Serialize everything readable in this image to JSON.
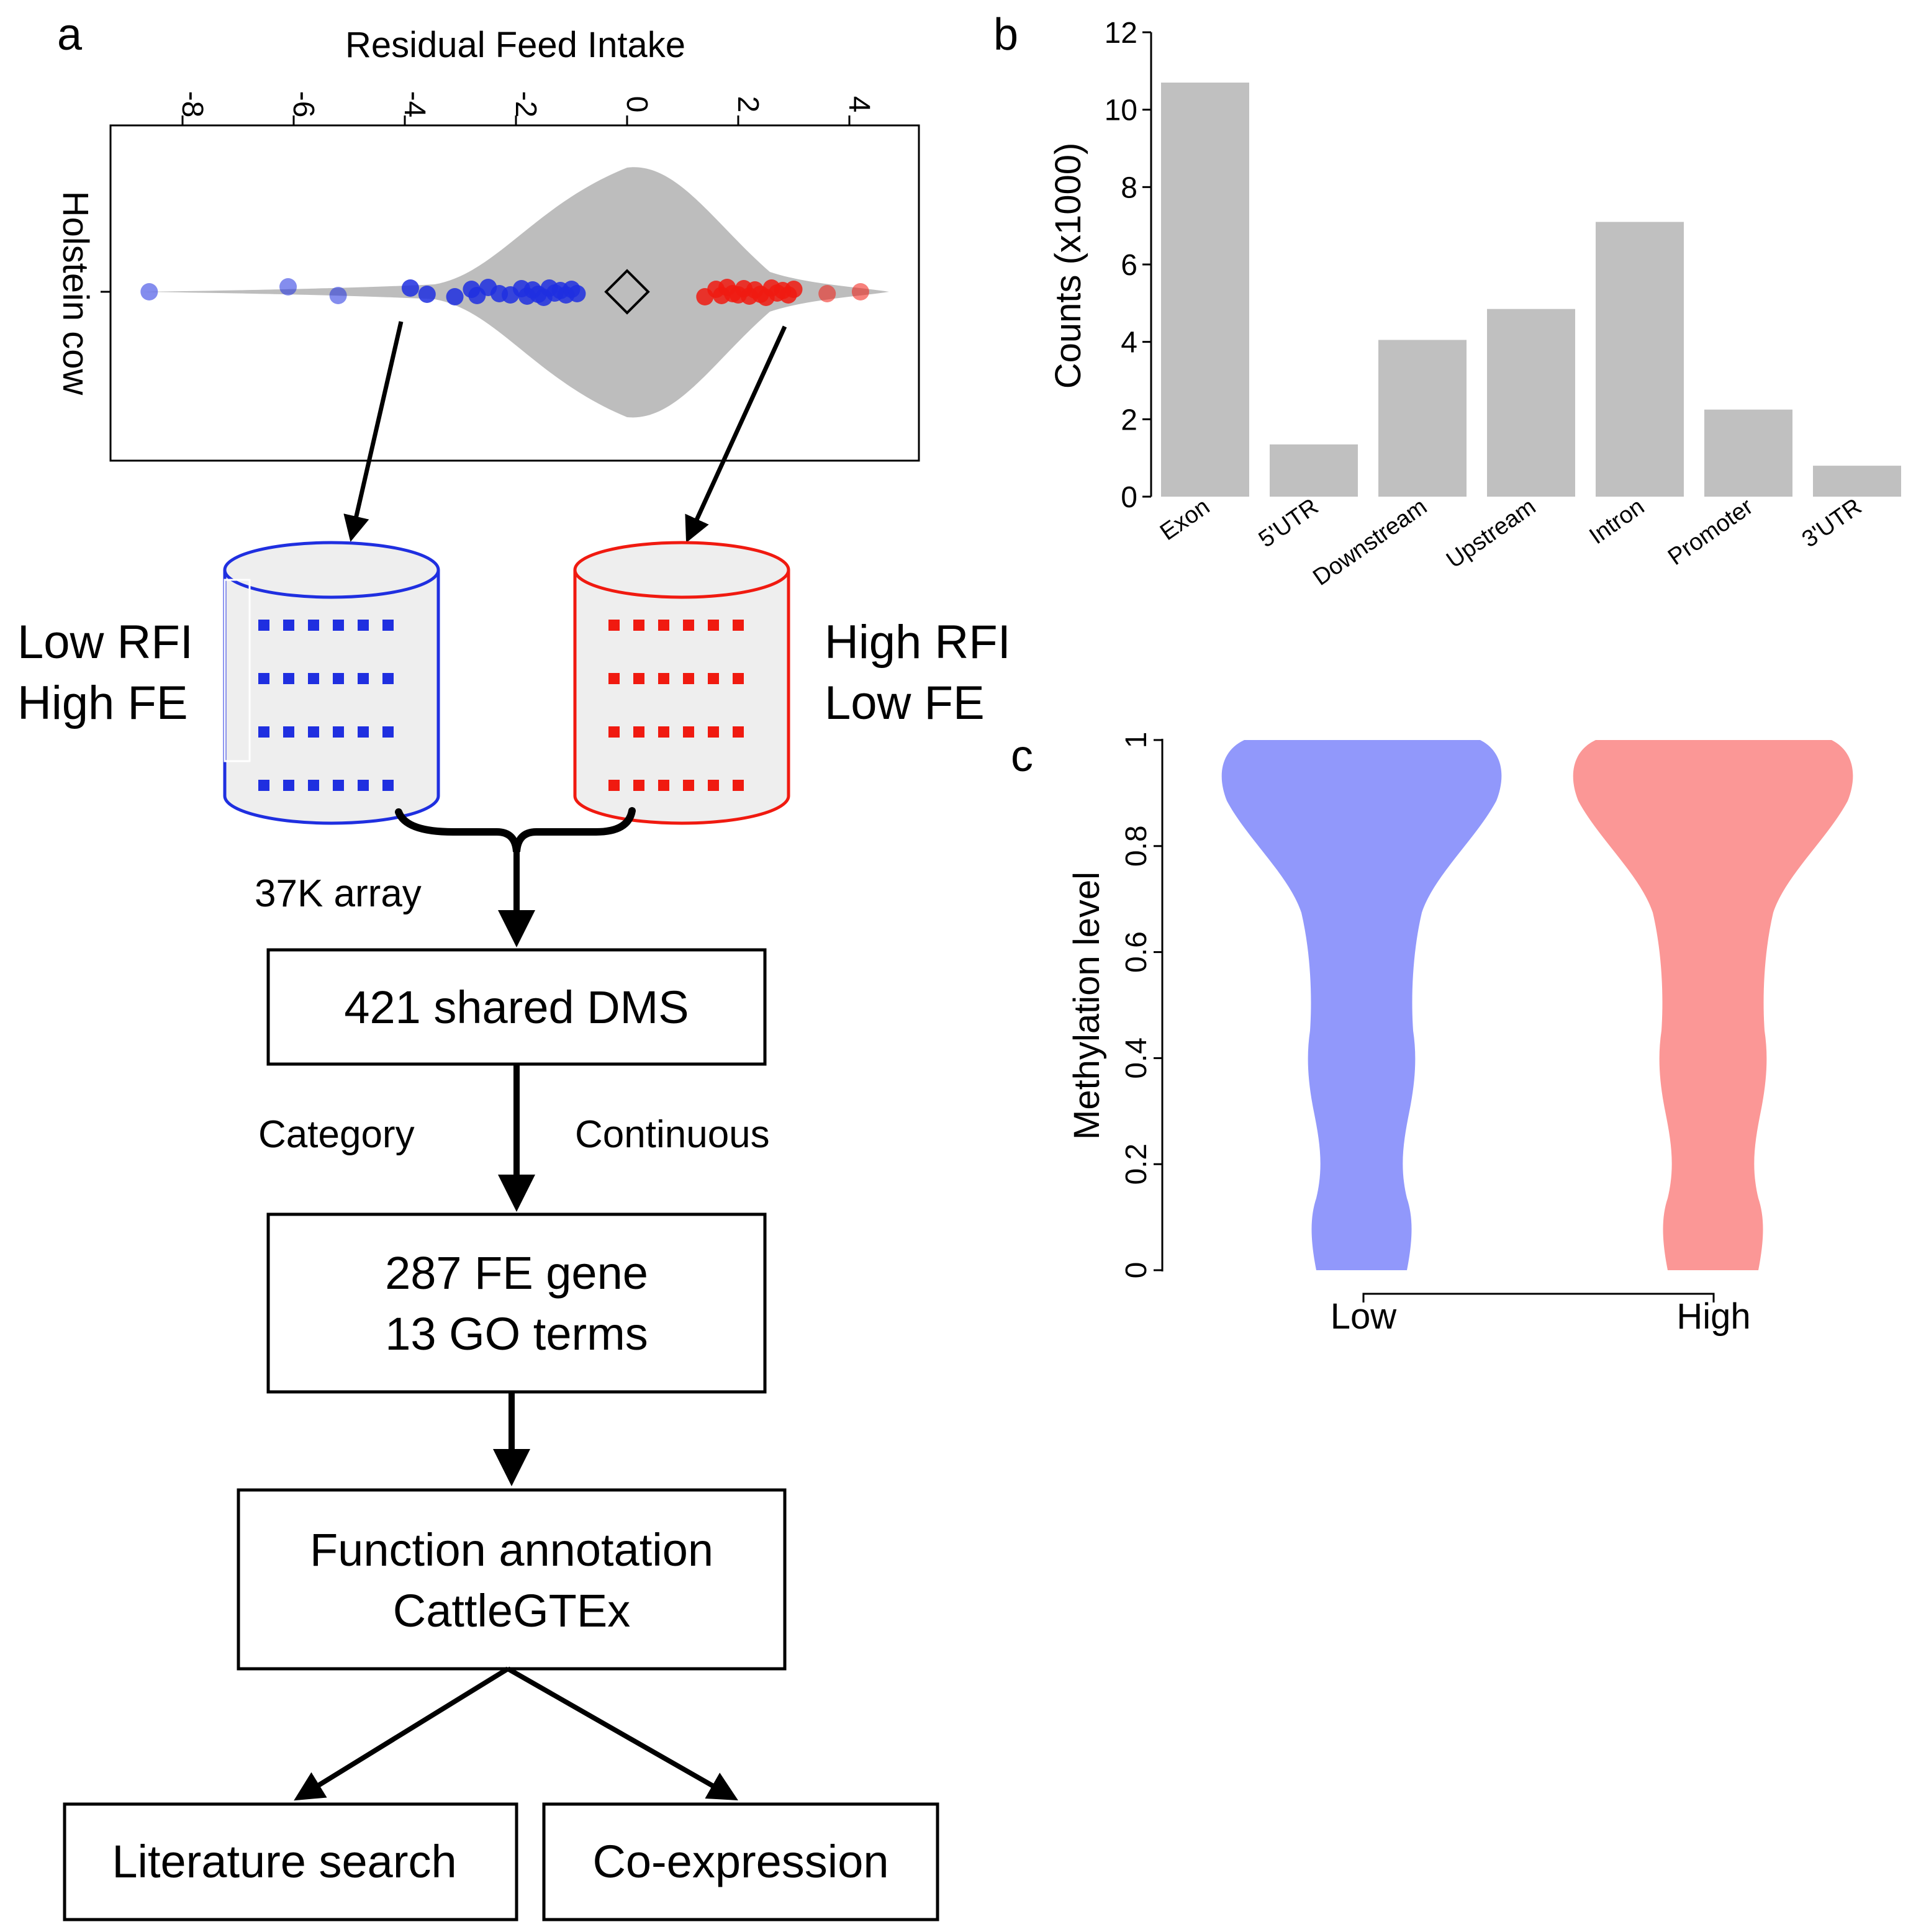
{
  "panels": {
    "a": "a",
    "b": "b",
    "c": "c"
  },
  "panel_a": {
    "axis_title": "Residual Feed Intake",
    "y_label": "Holstein cow",
    "ticks": [
      "-8",
      "-6",
      "-4",
      "-2",
      "0",
      "2",
      "4"
    ],
    "tick_values": [
      -8,
      -6,
      -4,
      -2,
      0,
      2,
      4
    ],
    "low_points": [
      -8.6,
      -6.1,
      -5.2,
      -3.9,
      -3.6,
      -3.1,
      -2.8,
      -2.7,
      -2.5,
      -2.3,
      -2.1,
      -1.9,
      -1.8,
      -1.7,
      -1.6,
      -1.5,
      -1.4,
      -1.3,
      -1.2,
      -1.1,
      -1.0,
      -0.9
    ],
    "high_points": [
      1.4,
      1.6,
      1.7,
      1.8,
      1.9,
      2.0,
      2.1,
      2.2,
      2.3,
      2.4,
      2.5,
      2.6,
      2.7,
      2.8,
      2.9,
      3.0,
      3.6,
      4.2
    ],
    "low_color": "#1f2fe0",
    "high_color": "#f01a10",
    "violin_color": "#bdbdbd"
  },
  "flow": {
    "low_group": {
      "line1": "Low RFI",
      "line2": "High FE"
    },
    "high_group": {
      "line1": "High RFI",
      "line2": "Low FE"
    },
    "array_label": "37K array",
    "box1": "421 shared DMS",
    "edge_left": "Category",
    "edge_right": "Continuous",
    "box2": {
      "line1": "287 FE gene",
      "line2": "13 GO terms"
    },
    "box3": {
      "line1": "Function annotation",
      "line2": "CattleGTEx"
    },
    "box4": "Literature search",
    "box5": "Co-expression"
  },
  "chart_data": [
    {
      "type": "bar",
      "panel": "b",
      "categories": [
        "Exon",
        "5'UTR",
        "Downstream",
        "Upstream",
        "Intron",
        "Promoter",
        "3'UTR"
      ],
      "values": [
        10.7,
        1.35,
        4.05,
        4.85,
        7.1,
        2.25,
        0.8
      ],
      "ylabel": "Counts (x1000)",
      "ylim": [
        0,
        12
      ],
      "yticks": [
        "0",
        "2",
        "4",
        "6",
        "8",
        "10",
        "12"
      ],
      "bar_color": "#c0c0c0"
    },
    {
      "type": "violin",
      "panel": "c",
      "categories": [
        "Low",
        "High"
      ],
      "ylabel": "Methylation level",
      "ylim": [
        0,
        1
      ],
      "yticks": [
        "0",
        "0.2",
        "0.4",
        "0.6",
        "0.8",
        "1"
      ],
      "colors": [
        "#9198fb",
        "#fb9796"
      ]
    }
  ]
}
